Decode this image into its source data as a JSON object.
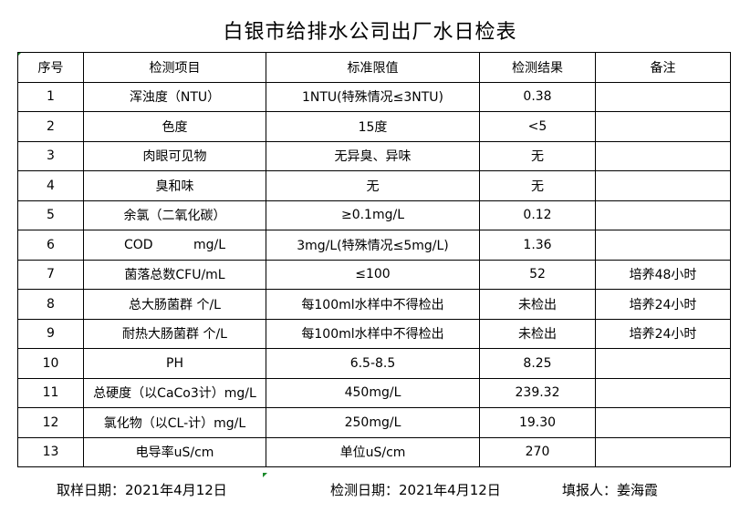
{
  "title": "白银市给排水公司出厂水日检表",
  "table": {
    "headers": [
      "序号",
      "检测项目",
      "标准限值",
      "检测结果",
      "备注"
    ],
    "rows": [
      [
        "1",
        "浑浊度（NTU）",
        "1NTU(特殊情况≤3NTU)",
        "0.38",
        ""
      ],
      [
        "2",
        "色度",
        "15度",
        "<5",
        ""
      ],
      [
        "3",
        "肉眼可见物",
        "无异臭、异味",
        "无",
        ""
      ],
      [
        "4",
        "臭和味",
        "无",
        "无",
        ""
      ],
      [
        "5",
        "余氯（二氧化碳）",
        "≥0.1mg/L",
        "0.12",
        ""
      ],
      [
        "6",
        "COD          mg/L",
        "3mg/L(特殊情况≤5mg/L)",
        "1.36",
        ""
      ],
      [
        "7",
        "菌落总数CFU/mL",
        "≤100",
        "52",
        "培养48小时"
      ],
      [
        "8",
        "总大肠菌群 个/L",
        "每100ml水样中不得检出",
        "未检出",
        "培养24小时"
      ],
      [
        "9",
        "耐热大肠菌群 个/L",
        "每100ml水样中不得检出",
        "未检出",
        "培养24小时"
      ],
      [
        "10",
        "PH",
        "6.5-8.5",
        "8.25",
        ""
      ],
      [
        "11",
        "总硬度（以CaCo3计）mg/L",
        "450mg/L",
        "239.32",
        ""
      ],
      [
        "12",
        "氯化物（以CL-计）mg/L",
        "250mg/L",
        "19.30",
        ""
      ],
      [
        "13",
        "电导率uS/cm",
        "单位uS/cm",
        "270",
        ""
      ]
    ]
  },
  "footer": {
    "sampling_date": "取样日期：2021年4月12日",
    "test_date": "检测日期：2021年4月12日",
    "reporter": "填报人：姜海霞"
  },
  "colors": {
    "cell_marker": "#1a8a2a"
  }
}
